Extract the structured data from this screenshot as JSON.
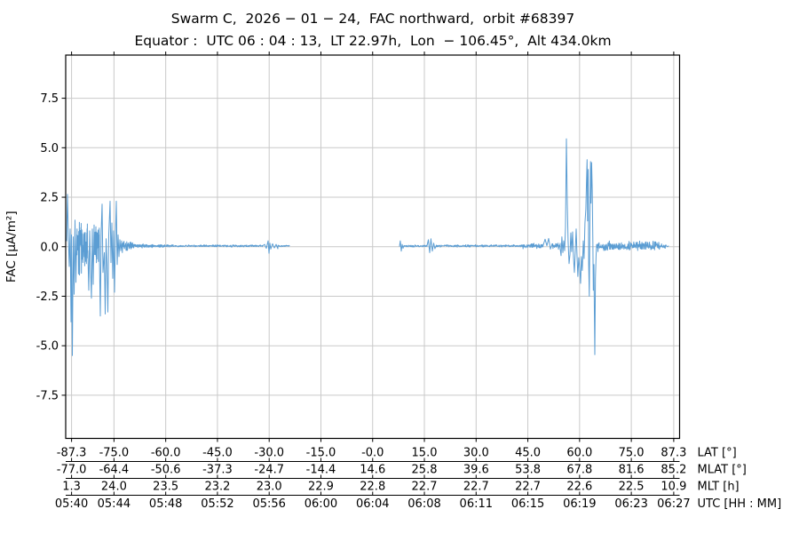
{
  "chart_data": {
    "type": "line",
    "title": "Swarm C,  2026 − 01 − 24,  FAC northward,  orbit #68397",
    "subtitle": "Equator :  UTC 06 : 04 : 13,  LT 22.97h,  Lon  − 106.45°,  Alt 434.0km",
    "ylabel": "FAC [µA/m²]",
    "ylim": [
      -9.68,
      9.68
    ],
    "yticks": [
      7.5,
      5.0,
      2.5,
      0.0,
      -2.5,
      -5.0,
      -7.5
    ],
    "ytick_labels": [
      "7.5",
      "5.0",
      "2.5",
      "0.0",
      "-2.5",
      "-5.0",
      "-7.5"
    ],
    "grid": true,
    "legend": "none",
    "noise_offset": 0.04,
    "colors": {
      "line": "#5b9dd3",
      "grid": "#c9c9c9",
      "spine": "#000000",
      "text": "#000000",
      "background": "#ffffff"
    },
    "x_axis": {
      "lim_lat": [
        -89,
        89
      ],
      "tick_lats": [
        -87.3,
        -75.0,
        -60.0,
        -45.0,
        -30.0,
        -15.0,
        0.0,
        15.0,
        30.0,
        45.0,
        60.0,
        75.0,
        87.3
      ],
      "rows": [
        {
          "label": "LAT [°]",
          "values": [
            "-87.3",
            "-75.0",
            "-60.0",
            "-45.0",
            "-30.0",
            "-15.0",
            "-0.0",
            "15.0",
            "30.0",
            "45.0",
            "60.0",
            "75.0",
            "87.3"
          ]
        },
        {
          "label": "MLAT [°]",
          "values": [
            "-77.0",
            "-64.4",
            "-50.6",
            "-37.3",
            "-24.7",
            "-14.4",
            "14.6",
            "25.8",
            "39.6",
            "53.8",
            "67.8",
            "81.6",
            "85.2"
          ]
        },
        {
          "label": "MLT [h]",
          "values": [
            "1.3",
            "24.0",
            "23.5",
            "23.2",
            "23.0",
            "22.9",
            "22.8",
            "22.7",
            "22.7",
            "22.7",
            "22.6",
            "22.5",
            "10.9"
          ]
        },
        {
          "label": "UTC [HH : MM]",
          "values": [
            "05:40",
            "05:44",
            "05:48",
            "05:52",
            "05:56",
            "06:00",
            "06:04",
            "06:08",
            "06:11",
            "06:15",
            "06:19",
            "06:23",
            "06:27"
          ]
        }
      ]
    },
    "series": [
      {
        "name": "FAC northward",
        "unit": "µA/m²",
        "color": "#5b9dd3",
        "waveform": [
          {
            "t": "pts",
            "p": [
              [
                -88.74,
                0.3
              ],
              [
                -88.49,
                2.65
              ],
              [
                -88.23,
                0.5
              ],
              [
                -87.97,
                -1.0
              ],
              [
                -87.71,
                0.9
              ],
              [
                -87.46,
                -3.8
              ],
              [
                -87.33,
                0.6
              ],
              [
                -87.07,
                -5.5
              ],
              [
                -86.81,
                0.5
              ],
              [
                -86.55,
                -2.4
              ],
              [
                -86.3,
                1.35
              ],
              [
                -86.04,
                -1.8
              ],
              [
                -85.78,
                0.6
              ]
            ]
          },
          {
            "t": "noise",
            "lat0": -85.78,
            "lat1": -82.56,
            "amp0": 1.5,
            "amp1": 1.45,
            "n": 80,
            "seed": 2
          },
          {
            "t": "pts",
            "p": [
              [
                -82.56,
                -0.4
              ],
              [
                -82.31,
                -2.2
              ],
              [
                -82.05,
                0.8
              ],
              [
                -81.79,
                -1.1
              ],
              [
                -81.53,
                -2.6
              ],
              [
                -81.28,
                0.9
              ],
              [
                -81.02,
                -1.9
              ],
              [
                -80.76,
                1.1
              ]
            ]
          },
          {
            "t": "noise",
            "lat0": -80.76,
            "lat1": -79.22,
            "amp0": 1.3,
            "amp1": 1.3,
            "n": 40,
            "seed": 3
          },
          {
            "t": "pts",
            "p": [
              [
                -79.22,
                -0.5
              ],
              [
                -78.96,
                -3.5
              ],
              [
                -78.7,
                0.8
              ],
              [
                -78.45,
                2.15
              ],
              [
                -78.19,
                -1.3
              ],
              [
                -77.8,
                -0.3
              ],
              [
                -77.55,
                -3.4
              ],
              [
                -77.29,
                0.4
              ],
              [
                -77.03,
                -0.9
              ],
              [
                -76.77,
                -3.3
              ],
              [
                -76.52,
                0.6
              ],
              [
                -76.13,
                2.3
              ],
              [
                -75.87,
                -0.8
              ],
              [
                -75.62,
                1.2
              ],
              [
                -75.36,
                -1.6
              ],
              [
                -75.1,
                0.8
              ],
              [
                -74.84,
                -2.3
              ],
              [
                -74.59,
                0.5
              ],
              [
                -74.33,
                2.3
              ],
              [
                -74.07,
                -0.9
              ],
              [
                -73.81,
                0.6
              ],
              [
                -73.56,
                -0.5
              ],
              [
                -73.3,
                0.35
              ],
              [
                -73.04,
                -0.2
              ],
              [
                -72.78,
                0.3
              ]
            ]
          },
          {
            "t": "noise",
            "lat0": -72.78,
            "lat1": -69.44,
            "amp0": 0.42,
            "amp1": 0.2,
            "n": 50,
            "seed": 4
          },
          {
            "t": "noise",
            "lat0": -69.44,
            "lat1": -59.14,
            "amp0": 0.16,
            "amp1": 0.07,
            "n": 140,
            "seed": 5
          },
          {
            "t": "noise",
            "lat0": -59.14,
            "lat1": -31.86,
            "amp0": 0.06,
            "amp1": 0.06,
            "n": 300,
            "seed": 6
          },
          {
            "t": "pts",
            "p": [
              [
                -31.34,
                0.12
              ],
              [
                -30.83,
                -0.08
              ],
              [
                -30.31,
                0.3
              ],
              [
                -30.06,
                -0.33
              ],
              [
                -29.8,
                0.18
              ],
              [
                -29.54,
                -0.12
              ],
              [
                -29.03,
                0.15
              ],
              [
                -28.51,
                -0.06
              ],
              [
                -28.0,
                0.12
              ],
              [
                -27.48,
                -0.1
              ]
            ]
          },
          {
            "t": "noise",
            "lat0": -27.48,
            "lat1": -24.14,
            "amp0": 0.05,
            "amp1": 0.03,
            "n": 50,
            "seed": 7
          },
          {
            "t": "gap"
          },
          {
            "t": "pts",
            "p": [
              [
                7.78,
                0.02
              ],
              [
                8.03,
                0.3
              ],
              [
                8.29,
                -0.22
              ],
              [
                8.55,
                0.12
              ],
              [
                8.81,
                -0.08
              ],
              [
                9.06,
                0.05
              ]
            ]
          },
          {
            "t": "noise",
            "lat0": 9.06,
            "lat1": 15.76,
            "amp0": 0.06,
            "amp1": 0.06,
            "n": 80,
            "seed": 8
          },
          {
            "t": "pts",
            "p": [
              [
                15.76,
                0.05
              ],
              [
                16.14,
                0.35
              ],
              [
                16.53,
                -0.3
              ],
              [
                16.91,
                0.4
              ],
              [
                17.3,
                -0.22
              ],
              [
                17.69,
                0.18
              ],
              [
                18.07,
                -0.1
              ],
              [
                18.46,
                0.08
              ]
            ]
          },
          {
            "t": "noise",
            "lat0": 18.46,
            "lat1": 43.3,
            "amp0": 0.07,
            "amp1": 0.07,
            "n": 280,
            "seed": 9
          },
          {
            "t": "noise",
            "lat0": 43.3,
            "lat1": 49.48,
            "amp0": 0.15,
            "amp1": 0.15,
            "n": 80,
            "seed": 10
          },
          {
            "t": "pts",
            "p": [
              [
                49.48,
                0.1
              ],
              [
                49.99,
                0.38
              ],
              [
                50.51,
                0.05
              ],
              [
                51.02,
                0.42
              ],
              [
                51.54,
                -0.12
              ],
              [
                52.05,
                0.15
              ]
            ]
          },
          {
            "t": "noise",
            "lat0": 52.05,
            "lat1": 54.37,
            "amp0": 0.22,
            "amp1": 0.22,
            "n": 30,
            "seed": 11
          },
          {
            "t": "pts",
            "p": [
              [
                54.37,
                -0.1
              ],
              [
                54.63,
                -0.45
              ],
              [
                54.88,
                0.5
              ],
              [
                55.14,
                -0.3
              ],
              [
                55.4,
                0.3
              ],
              [
                55.66,
                -0.2
              ],
              [
                55.91,
                1.0
              ],
              [
                56.17,
                5.45
              ],
              [
                56.43,
                2.2
              ],
              [
                56.68,
                0.3
              ],
              [
                56.94,
                -0.85
              ],
              [
                57.2,
                -0.4
              ],
              [
                57.46,
                0.7
              ],
              [
                57.71,
                -0.25
              ],
              [
                57.97,
                0.75
              ],
              [
                58.23,
                -0.55
              ],
              [
                58.49,
                -1.3
              ],
              [
                58.74,
                -0.35
              ],
              [
                59.0,
                0.9
              ],
              [
                59.26,
                -0.5
              ],
              [
                59.51,
                -1.5
              ],
              [
                59.77,
                -0.55
              ],
              [
                60.03,
                -1.1
              ],
              [
                60.29,
                -1.85
              ],
              [
                60.54,
                -0.5
              ],
              [
                60.8,
                -1.2
              ],
              [
                61.06,
                0.3
              ],
              [
                61.31,
                -0.6
              ],
              [
                61.57,
                1.2
              ],
              [
                61.83,
                1.9
              ],
              [
                62.01,
                3.2
              ],
              [
                62.19,
                4.4
              ],
              [
                62.34,
                1.3
              ],
              [
                62.5,
                3.9
              ],
              [
                62.65,
                -0.9
              ],
              [
                62.81,
                -2.5
              ],
              [
                62.99,
                1.5
              ],
              [
                63.17,
                4.3
              ],
              [
                63.32,
                2.2
              ],
              [
                63.5,
                4.25
              ],
              [
                63.68,
                2.9
              ],
              [
                63.84,
                0.3
              ],
              [
                63.99,
                -2.2
              ],
              [
                64.15,
                -0.9
              ],
              [
                64.28,
                -3.3
              ],
              [
                64.41,
                -5.45
              ],
              [
                64.61,
                -1.6
              ],
              [
                64.79,
                -0.5
              ],
              [
                64.92,
                0.1
              ]
            ]
          },
          {
            "t": "noise",
            "lat0": 64.92,
            "lat1": 72.13,
            "amp0": 0.32,
            "amp1": 0.32,
            "n": 90,
            "seed": 12
          },
          {
            "t": "noise",
            "lat0": 72.13,
            "lat1": 83.45,
            "amp0": 0.27,
            "amp1": 0.27,
            "n": 140,
            "seed": 13
          },
          {
            "t": "noise",
            "lat0": 83.45,
            "lat1": 85.0,
            "amp0": 0.13,
            "amp1": 0.13,
            "n": 20,
            "seed": 14
          },
          {
            "t": "pts",
            "p": [
              [
                85.0,
                0.07
              ],
              [
                85.51,
                0.0
              ],
              [
                85.77,
                0.04
              ]
            ]
          }
        ]
      }
    ]
  }
}
